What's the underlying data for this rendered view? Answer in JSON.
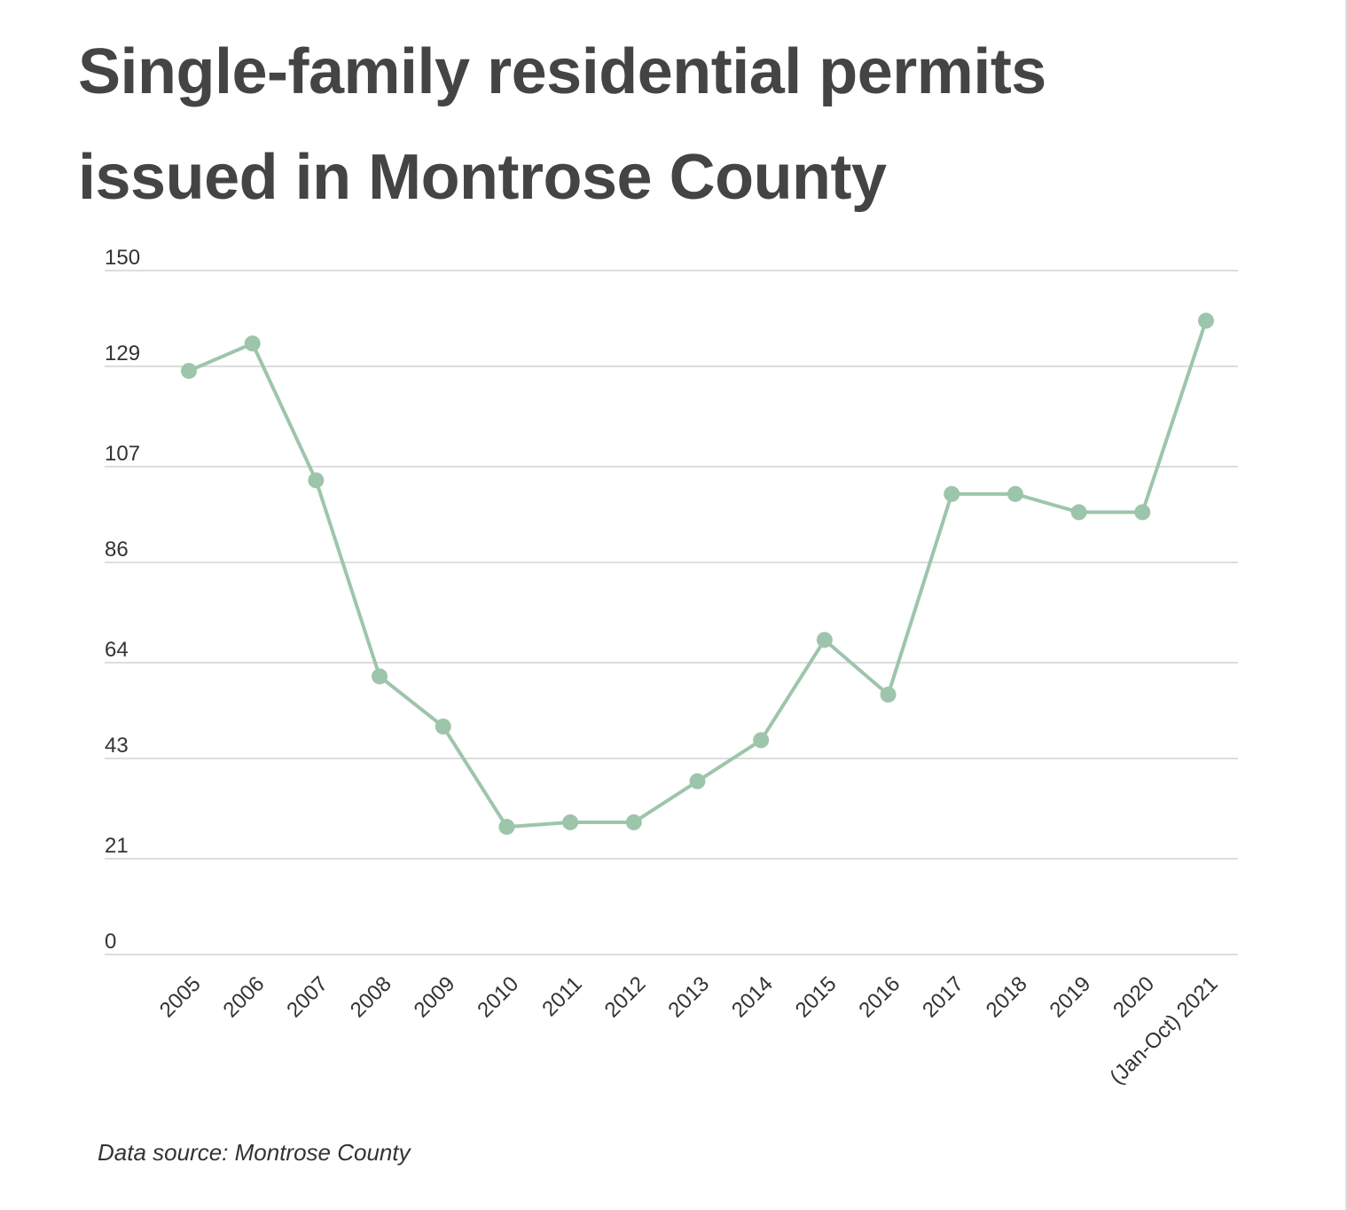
{
  "title_lines": [
    "Single-family residential permits",
    "issued in Montrose County"
  ],
  "source": "Data source: Montrose County",
  "colors": {
    "line": "#9dc5ab",
    "grid": "#dddddd",
    "axis_text": "#333333",
    "title": "#444444"
  },
  "chart_data": {
    "type": "line",
    "title": "Single-family residential permits issued in Montrose County",
    "xlabel": "",
    "ylabel": "",
    "ylim": [
      0,
      150
    ],
    "yticks": [
      0,
      21,
      43,
      64,
      86,
      107,
      129,
      150
    ],
    "grid": true,
    "categories": [
      "2005",
      "2006",
      "2007",
      "2008",
      "2009",
      "2010",
      "2011",
      "2012",
      "2013",
      "2014",
      "2015",
      "2016",
      "2017",
      "2018",
      "2019",
      "2020",
      "(Jan-Oct) 2021"
    ],
    "series": [
      {
        "name": "Single-family residential permits",
        "values": [
          128,
          134,
          104,
          61,
          50,
          28,
          29,
          29,
          38,
          47,
          69,
          57,
          101,
          101,
          97,
          97,
          139
        ]
      }
    ]
  }
}
